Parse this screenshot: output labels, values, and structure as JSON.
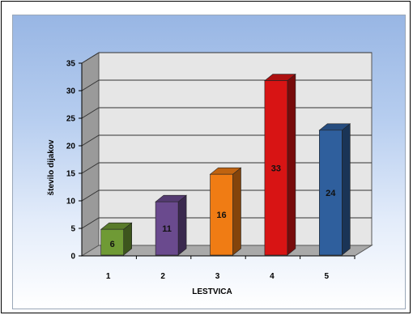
{
  "chart_data": {
    "type": "bar",
    "categories": [
      "1",
      "2",
      "3",
      "4",
      "5"
    ],
    "values": [
      6,
      11,
      16,
      33,
      24
    ],
    "data_labels": [
      "6",
      "11",
      "16",
      "33",
      "24"
    ],
    "colors": [
      "#6f9a35",
      "#6a4a8e",
      "#f07c14",
      "#d81414",
      "#2f5f9d"
    ],
    "xlabel": "LESTVICA",
    "ylabel": "število dijakov",
    "ylim": [
      0,
      35
    ],
    "yticks": [
      "0",
      "5",
      "10",
      "15",
      "20",
      "25",
      "30",
      "35"
    ],
    "grid": true,
    "style": "3d-column",
    "legend": "none"
  }
}
